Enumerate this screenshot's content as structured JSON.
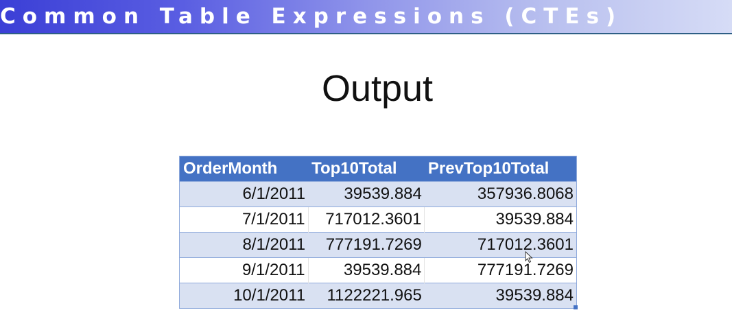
{
  "banner": {
    "title": "Common Table Expressions (CTEs)"
  },
  "slide": {
    "heading": "Output"
  },
  "table": {
    "columns": [
      "OrderMonth",
      "Top10Total",
      "PrevTop10Total"
    ],
    "rows": [
      [
        "6/1/2011",
        "39539.884",
        "357936.8068"
      ],
      [
        "7/1/2011",
        "717012.3601",
        "39539.884"
      ],
      [
        "8/1/2011",
        "777191.7269",
        "717012.3601"
      ],
      [
        "9/1/2011",
        "39539.884",
        "777191.7269"
      ],
      [
        "10/1/2011",
        "1122221.965",
        "39539.884"
      ]
    ]
  },
  "colors": {
    "header_fill": "#4472c4",
    "band_fill": "#d9e1f2",
    "banner_start": "#3b3fd6",
    "banner_end": "#d6dcf6"
  },
  "icons": {
    "cursor": "mouse-pointer-icon",
    "resize": "table-resize-handle-icon"
  }
}
